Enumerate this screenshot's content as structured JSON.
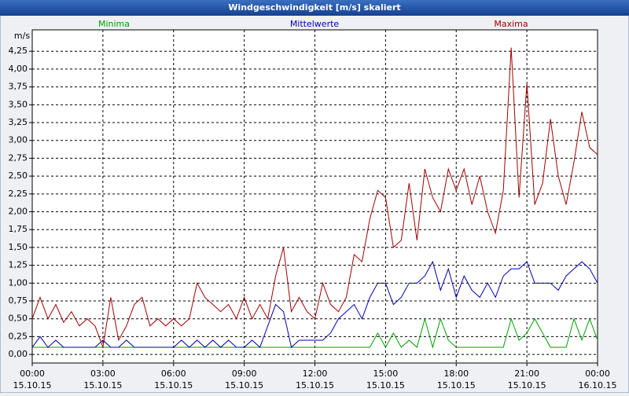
{
  "window_title": "Windgeschwindigkeit [m/s] skaliert",
  "chart_data": {
    "type": "line",
    "y_label": "m/s",
    "grid": true,
    "xlim": [
      0,
      1440
    ],
    "ylim": [
      -0.12,
      4.55
    ],
    "xticks": [
      {
        "value": 0,
        "label": "00:00",
        "date": "15.10.15"
      },
      {
        "value": 180,
        "label": "03:00",
        "date": "15.10.15"
      },
      {
        "value": 360,
        "label": "06:00",
        "date": "15.10.15"
      },
      {
        "value": 540,
        "label": "09:00",
        "date": "15.10.15"
      },
      {
        "value": 720,
        "label": "12:00",
        "date": "15.10.15"
      },
      {
        "value": 900,
        "label": "15:00",
        "date": "15.10.15"
      },
      {
        "value": 1080,
        "label": "18:00",
        "date": "15.10.15"
      },
      {
        "value": 1260,
        "label": "21:00",
        "date": "15.10.15"
      },
      {
        "value": 1440,
        "label": "00:00",
        "date": "16.10.15"
      }
    ],
    "yticks": [
      {
        "value": 0,
        "label": "0,00"
      },
      {
        "value": 0.25,
        "label": "0,25"
      },
      {
        "value": 0.5,
        "label": "0,50"
      },
      {
        "value": 0.75,
        "label": "0,75"
      },
      {
        "value": 1,
        "label": "1,00"
      },
      {
        "value": 1.25,
        "label": "1,25"
      },
      {
        "value": 1.5,
        "label": "1,50"
      },
      {
        "value": 1.75,
        "label": "1,75"
      },
      {
        "value": 2,
        "label": "2,00"
      },
      {
        "value": 2.25,
        "label": "2,25"
      },
      {
        "value": 2.5,
        "label": "2,50"
      },
      {
        "value": 2.75,
        "label": "2,75"
      },
      {
        "value": 3,
        "label": "3,00"
      },
      {
        "value": 3.25,
        "label": "3,25"
      },
      {
        "value": 3.5,
        "label": "3,50"
      },
      {
        "value": 3.75,
        "label": "3,75"
      },
      {
        "value": 4,
        "label": "4,00"
      },
      {
        "value": 4.25,
        "label": "4,25"
      }
    ],
    "x": [
      0,
      20,
      40,
      60,
      80,
      100,
      120,
      140,
      160,
      180,
      200,
      220,
      240,
      260,
      280,
      300,
      320,
      340,
      360,
      380,
      400,
      420,
      440,
      460,
      480,
      500,
      520,
      540,
      560,
      580,
      600,
      620,
      640,
      660,
      680,
      700,
      720,
      740,
      760,
      780,
      800,
      820,
      840,
      860,
      880,
      900,
      920,
      940,
      960,
      980,
      1000,
      1020,
      1040,
      1060,
      1080,
      1100,
      1120,
      1140,
      1160,
      1180,
      1200,
      1220,
      1240,
      1260,
      1280,
      1300,
      1320,
      1340,
      1360,
      1380,
      1400,
      1420,
      1440
    ],
    "series": [
      {
        "name": "Minima",
        "color": "#00a000",
        "values": [
          0.1,
          0.1,
          0.1,
          0.1,
          0.1,
          0.1,
          0.1,
          0.1,
          0.1,
          0.1,
          0.1,
          0.1,
          0.1,
          0.1,
          0.1,
          0.1,
          0.1,
          0.1,
          0.1,
          0.1,
          0.1,
          0.1,
          0.1,
          0.1,
          0.1,
          0.1,
          0.1,
          0.1,
          0.1,
          0.1,
          0.1,
          0.1,
          0.1,
          0.1,
          0.1,
          0.1,
          0.1,
          0.1,
          0.1,
          0.1,
          0.1,
          0.1,
          0.1,
          0.1,
          0.3,
          0.1,
          0.3,
          0.1,
          0.2,
          0.1,
          0.5,
          0.1,
          0.5,
          0.2,
          0.1,
          0.1,
          0.1,
          0.1,
          0.1,
          0.1,
          0.1,
          0.5,
          0.2,
          0.3,
          0.5,
          0.3,
          0.1,
          0.1,
          0.1,
          0.5,
          0.2,
          0.5,
          0.2
        ]
      },
      {
        "name": "Mittelwerte",
        "color": "#0000b0",
        "values": [
          0.1,
          0.25,
          0.1,
          0.2,
          0.1,
          0.1,
          0.1,
          0.1,
          0.1,
          0.2,
          0.1,
          0.1,
          0.2,
          0.1,
          0.1,
          0.1,
          0.1,
          0.1,
          0.1,
          0.2,
          0.1,
          0.2,
          0.1,
          0.2,
          0.1,
          0.2,
          0.1,
          0.1,
          0.2,
          0.1,
          0.4,
          0.7,
          0.6,
          0.1,
          0.2,
          0.2,
          0.2,
          0.2,
          0.3,
          0.5,
          0.6,
          0.7,
          0.5,
          0.8,
          1.0,
          1.0,
          0.7,
          0.8,
          1.0,
          1.0,
          1.1,
          1.3,
          0.9,
          1.2,
          0.8,
          1.1,
          0.9,
          0.8,
          1.0,
          0.8,
          1.1,
          1.2,
          1.2,
          1.3,
          1.0,
          1.0,
          1.0,
          0.9,
          1.1,
          1.2,
          1.3,
          1.2,
          1.0
        ]
      },
      {
        "name": "Maxima",
        "color": "#a00000",
        "values": [
          0.5,
          0.8,
          0.5,
          0.7,
          0.45,
          0.6,
          0.4,
          0.5,
          0.4,
          0.1,
          0.8,
          0.2,
          0.4,
          0.7,
          0.8,
          0.4,
          0.5,
          0.4,
          0.5,
          0.4,
          0.5,
          1.0,
          0.8,
          0.7,
          0.6,
          0.7,
          0.5,
          0.8,
          0.5,
          0.7,
          0.5,
          1.1,
          1.5,
          0.6,
          0.8,
          0.6,
          0.5,
          1.0,
          0.7,
          0.6,
          0.8,
          1.4,
          1.3,
          1.9,
          2.3,
          2.2,
          1.5,
          1.6,
          2.4,
          1.6,
          2.6,
          2.2,
          2.0,
          2.6,
          2.3,
          2.6,
          2.1,
          2.5,
          2.0,
          1.7,
          2.3,
          4.3,
          2.2,
          3.8,
          2.1,
          2.4,
          3.3,
          2.5,
          2.1,
          2.7,
          3.4,
          2.9,
          2.8
        ]
      }
    ]
  }
}
